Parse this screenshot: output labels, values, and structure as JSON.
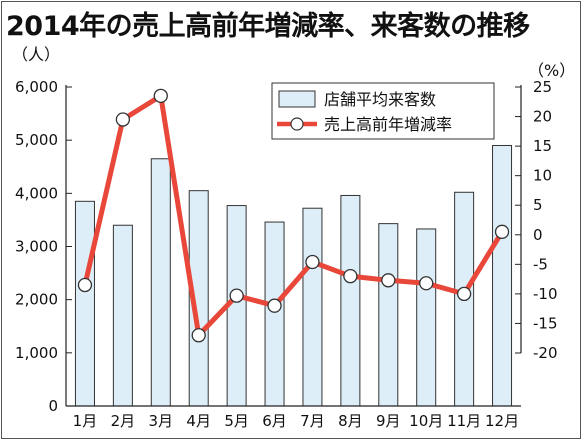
{
  "chart_data": {
    "type": "bar+line",
    "title": "2014年の売上高前年増減率、来客数の推移",
    "categories": [
      "1月",
      "2月",
      "3月",
      "4月",
      "5月",
      "6月",
      "7月",
      "8月",
      "9月",
      "10月",
      "11月",
      "12月"
    ],
    "series": [
      {
        "name": "店舗平均来客数",
        "type": "bar",
        "axis": "left",
        "values": [
          3850,
          3400,
          4650,
          4050,
          3770,
          3460,
          3720,
          3960,
          3430,
          3330,
          4020,
          4900
        ],
        "color": "#ddeef8"
      },
      {
        "name": "売上高前年増減率",
        "type": "line",
        "axis": "right",
        "values": [
          -8.5,
          19.5,
          23.5,
          -17.0,
          -10.3,
          -12.0,
          -4.6,
          -7.0,
          -7.7,
          -8.2,
          -10.0,
          0.5
        ],
        "color": "#e8473a"
      }
    ],
    "y_left": {
      "label": "（人）",
      "range": [
        0,
        6000
      ],
      "ticks": [
        "0",
        "1,000",
        "2,000",
        "3,000",
        "4,000",
        "5,000",
        "6,000"
      ],
      "tick_values": [
        0,
        1000,
        2000,
        3000,
        4000,
        5000,
        6000
      ]
    },
    "y_right": {
      "label": "（%）",
      "range": [
        -20,
        25
      ],
      "ticks": [
        "-20",
        "-15",
        "-10",
        "-5",
        "0",
        "5",
        "10",
        "15",
        "20",
        "25"
      ],
      "tick_values": [
        -20,
        -15,
        -10,
        -5,
        0,
        5,
        10,
        15,
        20,
        25
      ]
    },
    "legend_placement": "top-right",
    "grid": false
  }
}
